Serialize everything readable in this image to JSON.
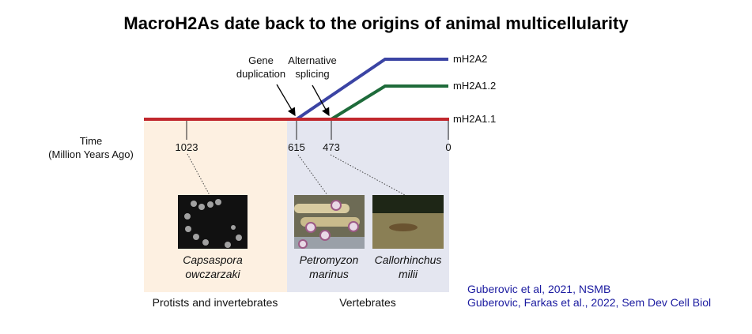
{
  "title": "MacroH2As date back to the origins of animal multicellularity",
  "axis": {
    "label_line1": "Time",
    "label_line2": "(Million Years Ago)",
    "ticks": [
      "1023",
      "615",
      "473",
      "0"
    ],
    "tick_values": [
      1023,
      615,
      473,
      0
    ]
  },
  "events": {
    "gene_duplication": [
      "Gene",
      "duplication"
    ],
    "alternative_splicing": [
      "Alternative",
      "splicing"
    ]
  },
  "isoforms": [
    "mH2A2",
    "mH2A1.2",
    "mH2A1.1"
  ],
  "organisms": [
    {
      "name_line1": "Capsaspora",
      "name_line2": "owczarzaki"
    },
    {
      "name_line1": "Petromyzon",
      "name_line2": "marinus"
    },
    {
      "name_line1": "Callorhinchus",
      "name_line2": "milii"
    }
  ],
  "groups": [
    "Protists and invertebrates",
    "Vertebrates"
  ],
  "citations": [
    "Guberovic et al, 2021, NSMB",
    "Guberovic, Farkas et al., 2022, Sem Dev Cell Biol"
  ],
  "colors": {
    "mH2A2": "#3b44a4",
    "mH2A1.2": "#1e6b3a",
    "mH2A1.1": "#c1272d",
    "protists_bg": "#fdf0e1",
    "vertebrates_bg": "#e4e6f0",
    "citation": "#1b1ba0"
  }
}
